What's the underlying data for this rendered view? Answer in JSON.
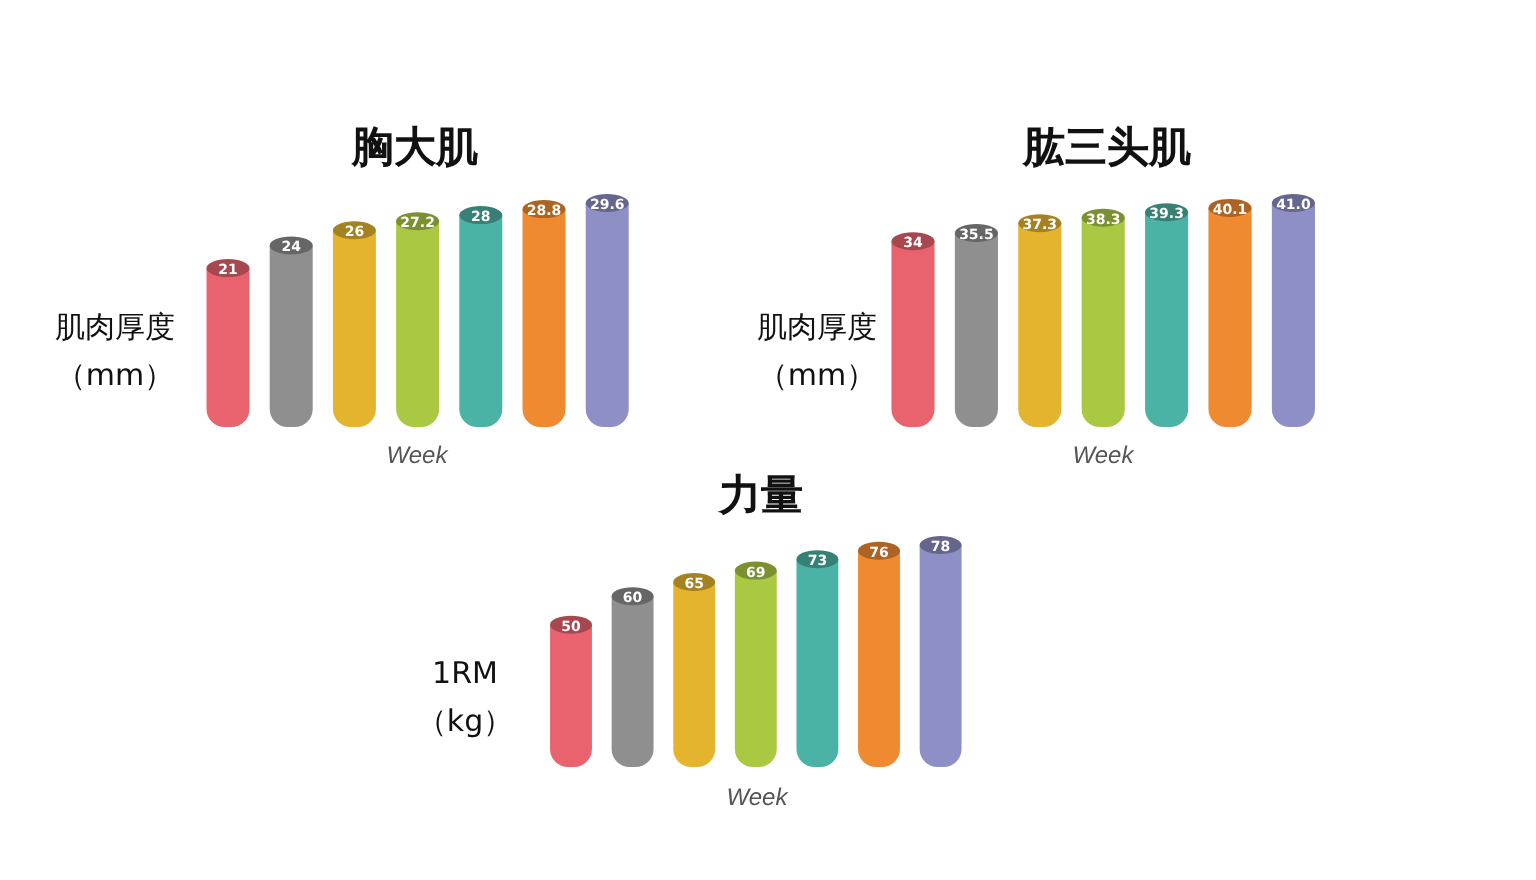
{
  "chart_data": [
    {
      "type": "bar",
      "title": "胸大肌",
      "ylabel": "肌肉厚度（mm）",
      "xlabel": "Week",
      "categories": [
        null,
        null,
        null,
        null,
        null,
        null,
        null
      ],
      "values": [
        21,
        24,
        26,
        27.2,
        28,
        28.8,
        29.6
      ],
      "value_labels": [
        "21",
        "24",
        "26",
        "27.2",
        "28",
        "28.8",
        "29.6"
      ],
      "colors": [
        "#e9636f",
        "#8f8f8f",
        "#e5b42f",
        "#abc843",
        "#4bb3a5",
        "#ef8a31",
        "#8d8fc5"
      ]
    },
    {
      "type": "bar",
      "title": "肱三头肌",
      "ylabel": "肌肉厚度（mm）",
      "xlabel": "Week",
      "categories": [
        null,
        null,
        null,
        null,
        null,
        null,
        null
      ],
      "values": [
        34,
        35.5,
        37.3,
        38.3,
        39.3,
        40.1,
        41.0
      ],
      "value_labels": [
        "34",
        "35.5",
        "37.3",
        "38.3",
        "39.3",
        "40.1",
        "41.0"
      ],
      "colors": [
        "#e9636f",
        "#8f8f8f",
        "#e5b42f",
        "#abc843",
        "#4bb3a5",
        "#ef8a31",
        "#8d8fc5"
      ]
    },
    {
      "type": "bar",
      "title": "力量",
      "ylabel": "1RM（kg）",
      "xlabel": "Week",
      "categories": [
        null,
        null,
        null,
        null,
        null,
        null,
        null
      ],
      "values": [
        50,
        60,
        65,
        69,
        73,
        76,
        78
      ],
      "value_labels": [
        "50",
        "60",
        "65",
        "69",
        "73",
        "76",
        "78"
      ],
      "colors": [
        "#e9636f",
        "#8f8f8f",
        "#e5b42f",
        "#abc843",
        "#4bb3a5",
        "#ef8a31",
        "#8d8fc5"
      ]
    }
  ]
}
